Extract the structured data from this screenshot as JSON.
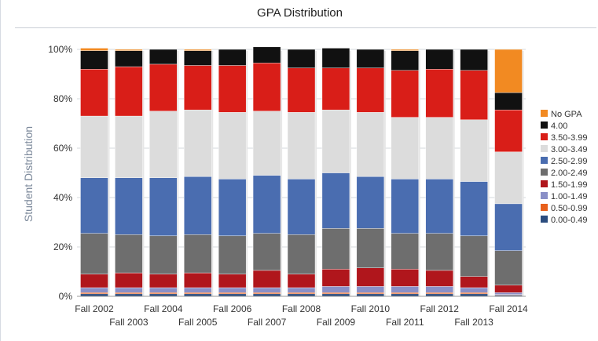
{
  "chart_data": {
    "type": "bar",
    "stacked": true,
    "title": "GPA Distribution",
    "ylabel": "Student Distribution",
    "xlabel": "",
    "ylim": [
      0,
      100
    ],
    "yticks": [
      "0%",
      "20%",
      "40%",
      "60%",
      "80%",
      "100%"
    ],
    "categories": [
      "Fall 2002",
      "Fall 2003",
      "Fall 2004",
      "Fall 2005",
      "Fall 2006",
      "Fall 2007",
      "Fall 2008",
      "Fall 2009",
      "Fall 2010",
      "Fall 2011",
      "Fall 2012",
      "Fall 2013",
      "Fall 2014"
    ],
    "legend_position": "right",
    "series": [
      {
        "name": "0.00-0.49",
        "color": "#2b4c7e",
        "values": [
          1,
          1,
          1,
          1,
          1,
          1,
          1,
          1,
          1,
          1,
          1,
          1,
          0.5
        ]
      },
      {
        "name": "0.50-0.99",
        "color": "#e8601c",
        "values": [
          0.5,
          0.5,
          0.5,
          0.5,
          0.5,
          0.5,
          0.5,
          0.5,
          0.5,
          0.5,
          0.5,
          0.5,
          0.2
        ]
      },
      {
        "name": "1.00-1.49",
        "color": "#8a8fc7",
        "values": [
          2,
          2,
          2,
          2,
          2,
          2,
          2,
          2.5,
          2.5,
          2.5,
          2.5,
          2,
          0.8
        ]
      },
      {
        "name": "1.50-1.99",
        "color": "#b0161c",
        "values": [
          5.5,
          6,
          5.5,
          6,
          5.5,
          7,
          5.5,
          7,
          7.5,
          7,
          6.5,
          4.5,
          3
        ]
      },
      {
        "name": "2.00-2.49",
        "color": "#6e6e6e",
        "values": [
          16.5,
          15.5,
          15.5,
          15.5,
          15.5,
          15,
          16,
          16.5,
          16,
          14.5,
          15,
          16.5,
          14
        ]
      },
      {
        "name": "2.50-2.99",
        "color": "#4a6db0",
        "values": [
          22.5,
          23,
          23.5,
          23.5,
          23,
          23.5,
          22.5,
          22.5,
          21,
          22,
          22,
          22,
          19
        ]
      },
      {
        "name": "3.00-3.49",
        "color": "#dcdcdc",
        "values": [
          25,
          25,
          27,
          27,
          27,
          26,
          27,
          25.5,
          26,
          25,
          25,
          25,
          21
        ]
      },
      {
        "name": "3.50-3.99",
        "color": "#d91e18",
        "values": [
          19,
          20,
          19,
          18,
          19,
          19.5,
          18,
          17,
          18,
          19,
          19.5,
          20,
          17
        ]
      },
      {
        "name": "4.00",
        "color": "#111111",
        "values": [
          7.5,
          6.5,
          6,
          6,
          6.5,
          6.5,
          7.5,
          8,
          7.5,
          8,
          8,
          8.5,
          7
        ]
      },
      {
        "name": "No GPA",
        "color": "#f28a22",
        "values": [
          1,
          0.5,
          0,
          0.5,
          0,
          0,
          0,
          0,
          0,
          0.5,
          0,
          0,
          17.5
        ]
      }
    ]
  }
}
